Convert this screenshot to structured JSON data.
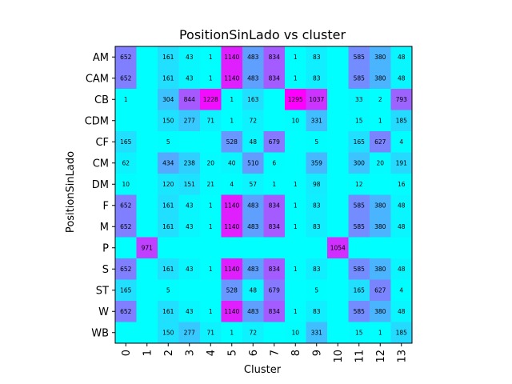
{
  "chart_data": {
    "type": "heatmap",
    "title": "PositionSinLado vs cluster",
    "xlabel": "Cluster",
    "ylabel": "PositionSinLado",
    "x_categories": [
      "0",
      "1",
      "2",
      "3",
      "4",
      "5",
      "6",
      "7",
      "8",
      "9",
      "10",
      "11",
      "12",
      "13"
    ],
    "y_categories": [
      "AM",
      "CAM",
      "CB",
      "CDM",
      "CF",
      "CM",
      "DM",
      "F",
      "M",
      "P",
      "S",
      "ST",
      "W",
      "WB"
    ],
    "colormap": "cool",
    "colors": {
      "low": "#00ffff",
      "high": "#ff00ff"
    },
    "vmin": 0,
    "vmax": 1295,
    "values": [
      [
        652,
        null,
        161,
        43,
        1,
        1140,
        483,
        834,
        1,
        83,
        null,
        585,
        380,
        48
      ],
      [
        652,
        null,
        161,
        43,
        1,
        1140,
        483,
        834,
        1,
        83,
        null,
        585,
        380,
        48
      ],
      [
        1,
        null,
        304,
        844,
        1228,
        1,
        163,
        null,
        1295,
        1037,
        null,
        33,
        2,
        793
      ],
      [
        null,
        null,
        150,
        277,
        71,
        1,
        72,
        null,
        10,
        331,
        null,
        15,
        1,
        185
      ],
      [
        165,
        null,
        5,
        null,
        null,
        528,
        48,
        679,
        null,
        5,
        null,
        165,
        627,
        4
      ],
      [
        62,
        null,
        434,
        238,
        20,
        40,
        510,
        6,
        null,
        359,
        null,
        300,
        20,
        191
      ],
      [
        10,
        null,
        120,
        151,
        21,
        4,
        57,
        1,
        1,
        98,
        null,
        12,
        null,
        16
      ],
      [
        652,
        null,
        161,
        43,
        1,
        1140,
        483,
        834,
        1,
        83,
        null,
        585,
        380,
        48
      ],
      [
        652,
        null,
        161,
        43,
        1,
        1140,
        483,
        834,
        1,
        83,
        null,
        585,
        380,
        48
      ],
      [
        null,
        971,
        null,
        null,
        null,
        null,
        null,
        null,
        null,
        null,
        1054,
        null,
        null,
        null
      ],
      [
        652,
        null,
        161,
        43,
        1,
        1140,
        483,
        834,
        1,
        83,
        null,
        585,
        380,
        48
      ],
      [
        165,
        null,
        5,
        null,
        null,
        528,
        48,
        679,
        null,
        5,
        null,
        165,
        627,
        4
      ],
      [
        652,
        null,
        161,
        43,
        1,
        1140,
        483,
        834,
        1,
        83,
        null,
        585,
        380,
        48
      ],
      [
        null,
        null,
        150,
        277,
        71,
        1,
        72,
        null,
        10,
        331,
        null,
        15,
        1,
        185
      ]
    ]
  }
}
